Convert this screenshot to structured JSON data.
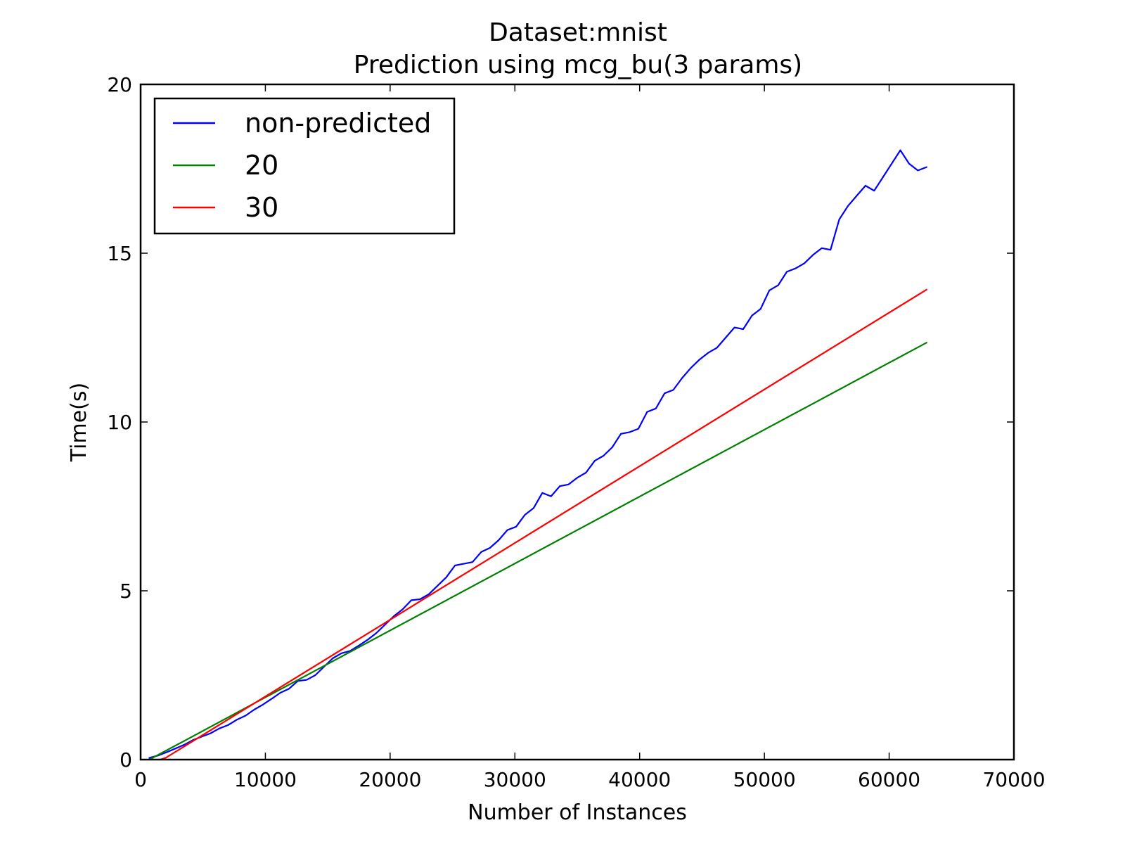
{
  "chart_data": {
    "type": "line",
    "title": "Dataset:mnist",
    "subtitle": "Prediction using mcg_bu(3 params)",
    "xlabel": "Number of Instances",
    "ylabel": "Time(s)",
    "xlim": [
      0,
      70000
    ],
    "ylim": [
      0,
      20
    ],
    "xticks": [
      0,
      10000,
      20000,
      30000,
      40000,
      50000,
      60000,
      70000
    ],
    "yticks": [
      0,
      5,
      10,
      15,
      20
    ],
    "grid": false,
    "legend": "upper-left",
    "series": [
      {
        "name": "non-predicted",
        "color": "#0000ff",
        "x": [
          700,
          1400,
          2100,
          2800,
          3500,
          4200,
          4900,
          5600,
          6300,
          7000,
          7700,
          8400,
          9100,
          9800,
          10500,
          11200,
          11900,
          12600,
          13300,
          14000,
          14700,
          15400,
          16100,
          16800,
          17500,
          18200,
          18900,
          19600,
          20300,
          21000,
          21700,
          22400,
          23100,
          23800,
          24500,
          25200,
          25900,
          26600,
          27300,
          28000,
          28700,
          29400,
          30100,
          30800,
          31500,
          32200,
          32900,
          33600,
          34300,
          35000,
          35700,
          36400,
          37100,
          37800,
          38500,
          39200,
          39900,
          40600,
          41300,
          42000,
          42700,
          43400,
          44100,
          44800,
          45500,
          46200,
          46900,
          47600,
          48300,
          49000,
          49700,
          50400,
          51100,
          51800,
          52500,
          53200,
          53900,
          54600,
          55300,
          56000,
          56700,
          57400,
          58100,
          58800,
          59500,
          60200,
          60900,
          61600,
          62300,
          63000
        ],
        "values": [
          0.05,
          0.12,
          0.22,
          0.33,
          0.44,
          0.58,
          0.68,
          0.78,
          0.92,
          1.02,
          1.18,
          1.3,
          1.48,
          1.63,
          1.8,
          1.98,
          2.1,
          2.33,
          2.36,
          2.5,
          2.75,
          3.0,
          3.15,
          3.22,
          3.38,
          3.55,
          3.75,
          4.0,
          4.25,
          4.45,
          4.72,
          4.75,
          4.9,
          5.15,
          5.4,
          5.75,
          5.8,
          5.85,
          6.15,
          6.27,
          6.5,
          6.8,
          6.9,
          7.25,
          7.45,
          7.9,
          7.8,
          8.1,
          8.15,
          8.35,
          8.5,
          8.85,
          9.0,
          9.25,
          9.65,
          9.7,
          9.8,
          10.3,
          10.4,
          10.85,
          10.95,
          11.3,
          11.6,
          11.85,
          12.05,
          12.2,
          12.5,
          12.8,
          12.75,
          13.15,
          13.35,
          13.9,
          14.05,
          14.45,
          14.55,
          14.7,
          14.95,
          15.15,
          15.1,
          16.0,
          16.4,
          16.7,
          17.0,
          16.85,
          17.25,
          17.65,
          18.05,
          17.65,
          17.45,
          17.55
        ]
      },
      {
        "name": "20",
        "color": "#008000",
        "x": [
          700,
          63000
        ],
        "values": [
          0.0,
          12.35
        ]
      },
      {
        "name": "30",
        "color": "#ff0000",
        "x": [
          700,
          2000,
          63000
        ],
        "values": [
          -0.1,
          0.05,
          13.92
        ]
      }
    ]
  }
}
